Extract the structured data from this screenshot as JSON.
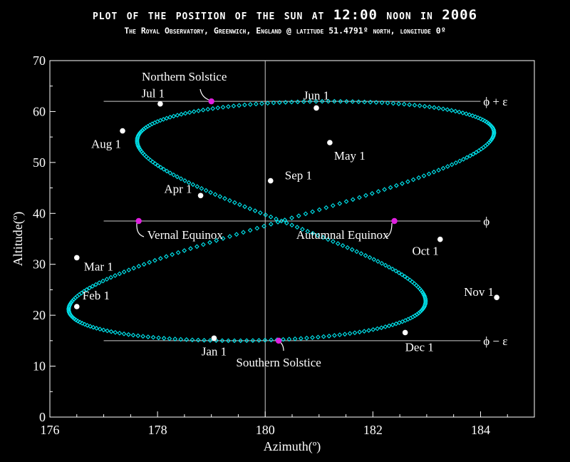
{
  "title": "plot of the position of the sun at 12:00 noon in 2006",
  "subtitle": "The Royal Observatory, Greenwich, England @ latitude 51.4791º north, longitude 0º",
  "colors": {
    "background": "#000000",
    "analemma": "#00e5ee",
    "month_point": "#ffffff",
    "event_point": "#e020e0",
    "axis": "#ffffff"
  },
  "chart_data": {
    "type": "scatter",
    "xlabel": "Azimuth(º)",
    "ylabel": "Altitude(º)",
    "xlim": [
      176,
      185
    ],
    "ylim": [
      0,
      70
    ],
    "xticks": [
      176,
      178,
      180,
      182,
      184
    ],
    "yticks": [
      0,
      10,
      20,
      30,
      40,
      50,
      60,
      70
    ],
    "grid": false,
    "reference_lines": [
      {
        "label": "ϕ + ε",
        "y": 62.0
      },
      {
        "label": "ϕ",
        "y": 38.5
      },
      {
        "label": "ϕ − ε",
        "y": 15.0
      }
    ],
    "vertical_line_x": 180,
    "analemma": {
      "y_center": 38.5,
      "y_amplitude": 23.5,
      "x_center": 180.3,
      "x_amp_annual": 0.9,
      "x_amp_semiannual": 3.3
    },
    "month_points": [
      {
        "label": "Jan 1",
        "x": 179.05,
        "y": 15.5
      },
      {
        "label": "Feb 1",
        "x": 176.5,
        "y": 21.7
      },
      {
        "label": "Mar 1",
        "x": 176.5,
        "y": 31.3
      },
      {
        "label": "Apr 1",
        "x": 178.8,
        "y": 43.5
      },
      {
        "label": "May 1",
        "x": 181.2,
        "y": 53.9
      },
      {
        "label": "Jun 1",
        "x": 180.95,
        "y": 60.7
      },
      {
        "label": "Jul 1",
        "x": 178.05,
        "y": 61.5
      },
      {
        "label": "Aug 1",
        "x": 177.35,
        "y": 56.2
      },
      {
        "label": "Sep 1",
        "x": 180.1,
        "y": 46.4
      },
      {
        "label": "Oct 1",
        "x": 183.25,
        "y": 34.9
      },
      {
        "label": "Nov 1",
        "x": 184.3,
        "y": 23.5
      },
      {
        "label": "Dec 1",
        "x": 182.6,
        "y": 16.6
      }
    ],
    "events": [
      {
        "label": "Northern Solstice",
        "x": 179.0,
        "y": 62.0
      },
      {
        "label": "Southern Solstice",
        "x": 180.25,
        "y": 15.0
      },
      {
        "label": "Vernal Equinox",
        "x": 177.65,
        "y": 38.5
      },
      {
        "label": "Autumnal Equinox",
        "x": 182.4,
        "y": 38.5
      }
    ]
  }
}
